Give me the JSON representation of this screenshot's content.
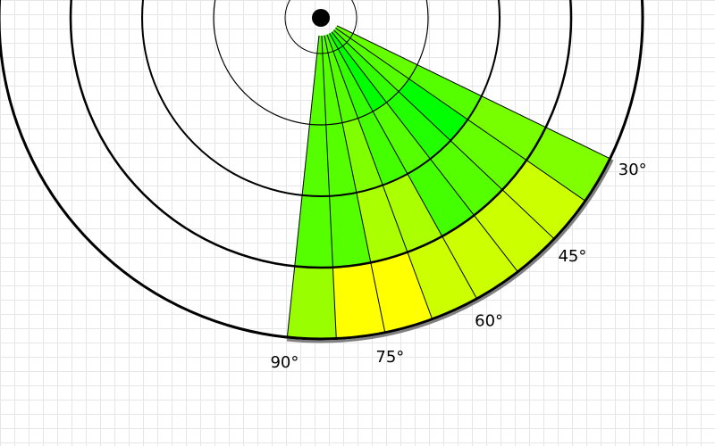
{
  "diagram": {
    "type": "polar-sector-heatmap",
    "angle_labels": [
      {
        "angle_deg": 30,
        "text": "30°"
      },
      {
        "angle_deg": 45,
        "text": "45°"
      },
      {
        "angle_deg": 60,
        "text": "60°"
      },
      {
        "angle_deg": 75,
        "text": "75°"
      },
      {
        "angle_deg": 90,
        "text": "90°"
      }
    ],
    "angular_bins_deg": [
      30,
      37.5,
      45,
      52.5,
      60,
      67.5,
      75,
      82.5,
      90
    ],
    "radial_bands": 4,
    "cell_colors": [
      [
        "#66ff00",
        "#55ff00",
        "#33ff00",
        "#00ff00",
        "#33ff00",
        "#55ff00",
        "#55ff00",
        "#55ff00"
      ],
      [
        "#55ff00",
        "#00ff00",
        "#22ff00",
        "#55ff00",
        "#44ff00",
        "#7fff00",
        "#55ff00",
        "#55ff00"
      ],
      [
        "#77ff00",
        "#66ff00",
        "#55ff00",
        "#44ff00",
        "#aaff00",
        "#aaff00",
        "#55ff00",
        "#55ff00"
      ],
      [
        "#7fff00",
        "#ccff00",
        "#ccff00",
        "#ccff00",
        "#ccff00",
        "#ffff00",
        "#ffff00",
        "#99ff00"
      ]
    ],
    "colors": {
      "ring": "#000000",
      "grid": "#e6e6e6",
      "center_dot": "#000000",
      "outer_shadow": "#808080"
    }
  }
}
